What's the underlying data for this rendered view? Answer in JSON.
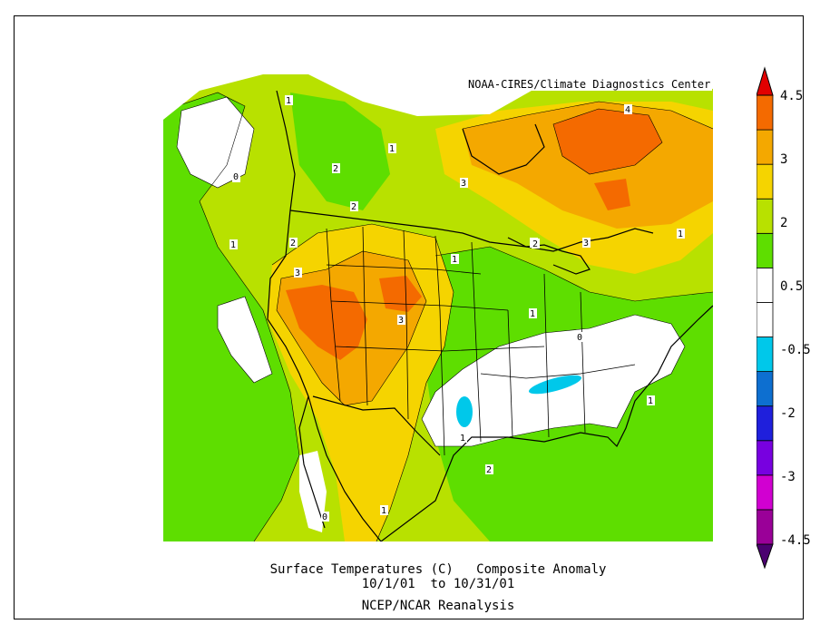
{
  "credit": "NOAA-CIRES/Climate Diagnostics Center",
  "caption": {
    "line1": "Surface Temperatures (C)   Composite Anomaly",
    "line2": "10/1/01  to 10/31/01",
    "line3": "NCEP/NCAR Reanalysis"
  },
  "colorbar": {
    "colors": [
      "#4b0070",
      "#9a0098",
      "#d100d1",
      "#7800e0",
      "#1f1fdc",
      "#0d6fd0",
      "#00c8ea",
      "#ffffff",
      "#ffffff",
      "#5ede00",
      "#b8e100",
      "#f5d400",
      "#f4a800",
      "#f46a00",
      "#e20000"
    ],
    "labels": [
      "4.5",
      "3",
      "2",
      "0.5",
      "-0.5",
      "-2",
      "-3",
      "-4.5"
    ]
  },
  "contour_labels": [
    "1",
    "0",
    "2",
    "1",
    "3",
    "4",
    "1",
    "2",
    "2",
    "1",
    "3",
    "1",
    "1",
    "3",
    "3",
    "1",
    "1",
    "2",
    "1",
    "0",
    "1",
    "0",
    "2",
    "0"
  ],
  "map": {
    "title": "Surface Temperatures (C) Composite Anomaly",
    "region": "North America",
    "fill_colors": {
      "ocean_anomaly": "#b8e100",
      "neutral": "#ffffff",
      "cool": "#00c8ea",
      "mid": "#5ede00",
      "warm": "#f5d400",
      "warmer": "#f4a800",
      "hot": "#f46a00"
    }
  }
}
